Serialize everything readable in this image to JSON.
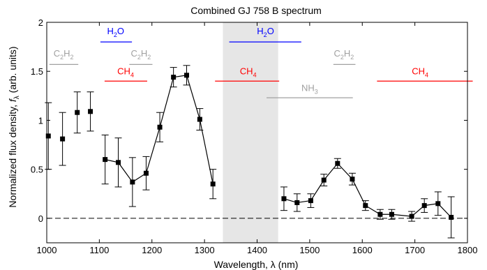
{
  "chart_data": {
    "type": "scatter",
    "title": "Combined GJ 758 B spectrum",
    "xlabel": "Wavelength, λ (nm)",
    "ylabel": {
      "main": "Normalized flux density, ",
      "f": "f",
      "sub": "λ",
      "unit": " (arb. units)"
    },
    "xlim": [
      1000,
      1800
    ],
    "ylim": [
      -0.25,
      2
    ],
    "xticks": [
      1000,
      1100,
      1200,
      1300,
      1400,
      1500,
      1600,
      1700,
      1800
    ],
    "xtick_labels": [
      "1000",
      "1100",
      "1200",
      "1300",
      "1400",
      "1500",
      "1600",
      "1700",
      "1800"
    ],
    "yticks": [
      0,
      0.5,
      1,
      1.5,
      2
    ],
    "ytick_labels": [
      "0",
      "0.5",
      "1",
      "1.5",
      "2"
    ],
    "grid": false,
    "colors": {
      "data": "#000000",
      "h2o": "#0000ff",
      "ch4": "#ff0000",
      "c2h2": "#a0a0a0",
      "nh3": "#a0a0a0",
      "shade": "#e6e6e6"
    },
    "shaded_region": [
      1335,
      1440
    ],
    "zero_line": 0,
    "series": [
      {
        "x": [
          1003,
          1030,
          1058,
          1083
        ],
        "y": [
          0.84,
          0.81,
          1.08,
          1.09
        ],
        "err": [
          0.34,
          0.27,
          0.21,
          0.2
        ],
        "connected": false
      },
      {
        "x": [
          1111,
          1136,
          1163,
          1189,
          1215,
          1241,
          1266,
          1291,
          1316
        ],
        "y": [
          0.6,
          0.57,
          0.37,
          0.46,
          0.93,
          1.44,
          1.46,
          1.01,
          0.35
        ],
        "err": [
          0.25,
          0.25,
          0.25,
          0.17,
          0.15,
          0.1,
          0.1,
          0.11,
          0.15
        ],
        "connected": true
      },
      {
        "x": [
          1451,
          1476,
          1502,
          1527,
          1553,
          1581,
          1606,
          1634,
          1656,
          1694,
          1718,
          1744,
          1769
        ],
        "y": [
          0.2,
          0.16,
          0.18,
          0.39,
          0.56,
          0.4,
          0.13,
          0.04,
          0.04,
          0.02,
          0.13,
          0.15,
          0.01
        ],
        "err": [
          0.12,
          0.09,
          0.07,
          0.06,
          0.05,
          0.06,
          0.05,
          0.05,
          0.05,
          0.05,
          0.07,
          0.12,
          0.21
        ],
        "connected": true
      }
    ],
    "annotations": [
      {
        "main": "H",
        "sub": "2",
        "tail": "O",
        "color": "h2o",
        "bar": [
          1102,
          1162
        ],
        "bar_y": 1.8,
        "label_x": 1131,
        "label_y": 1.88
      },
      {
        "main": "H",
        "sub": "2",
        "tail": "O",
        "color": "h2o",
        "bar": [
          1347,
          1484
        ],
        "bar_y": 1.8,
        "label_x": 1416,
        "label_y": 1.88
      },
      {
        "main": "C",
        "sub": "2",
        "tail": "H",
        "sub2": "2",
        "color": "c2h2",
        "bar": [
          1005,
          1060
        ],
        "bar_y": 1.57,
        "label_x": 1032,
        "label_y": 1.65
      },
      {
        "main": "C",
        "sub": "2",
        "tail": "H",
        "sub2": "2",
        "color": "c2h2",
        "bar": [
          1157,
          1201
        ],
        "bar_y": 1.57,
        "label_x": 1179,
        "label_y": 1.65
      },
      {
        "main": "C",
        "sub": "2",
        "tail": "H",
        "sub2": "2",
        "color": "c2h2",
        "bar": [
          1545,
          1587
        ],
        "bar_y": 1.57,
        "label_x": 1565,
        "label_y": 1.65
      },
      {
        "main": "CH",
        "sub": "4",
        "tail": "",
        "color": "ch4",
        "bar": [
          1110,
          1191
        ],
        "bar_y": 1.4,
        "label_x": 1150,
        "label_y": 1.47
      },
      {
        "main": "CH",
        "sub": "4",
        "tail": "",
        "color": "ch4",
        "bar": [
          1320,
          1442
        ],
        "bar_y": 1.4,
        "label_x": 1383,
        "label_y": 1.47
      },
      {
        "main": "CH",
        "sub": "4",
        "tail": "",
        "color": "ch4",
        "bar": [
          1628,
          1810
        ],
        "bar_y": 1.4,
        "label_x": 1710,
        "label_y": 1.47
      },
      {
        "main": "NH",
        "sub": "3",
        "tail": "",
        "color": "nh3",
        "bar": [
          1418,
          1582
        ],
        "bar_y": 1.23,
        "label_x": 1500,
        "label_y": 1.3
      }
    ]
  }
}
